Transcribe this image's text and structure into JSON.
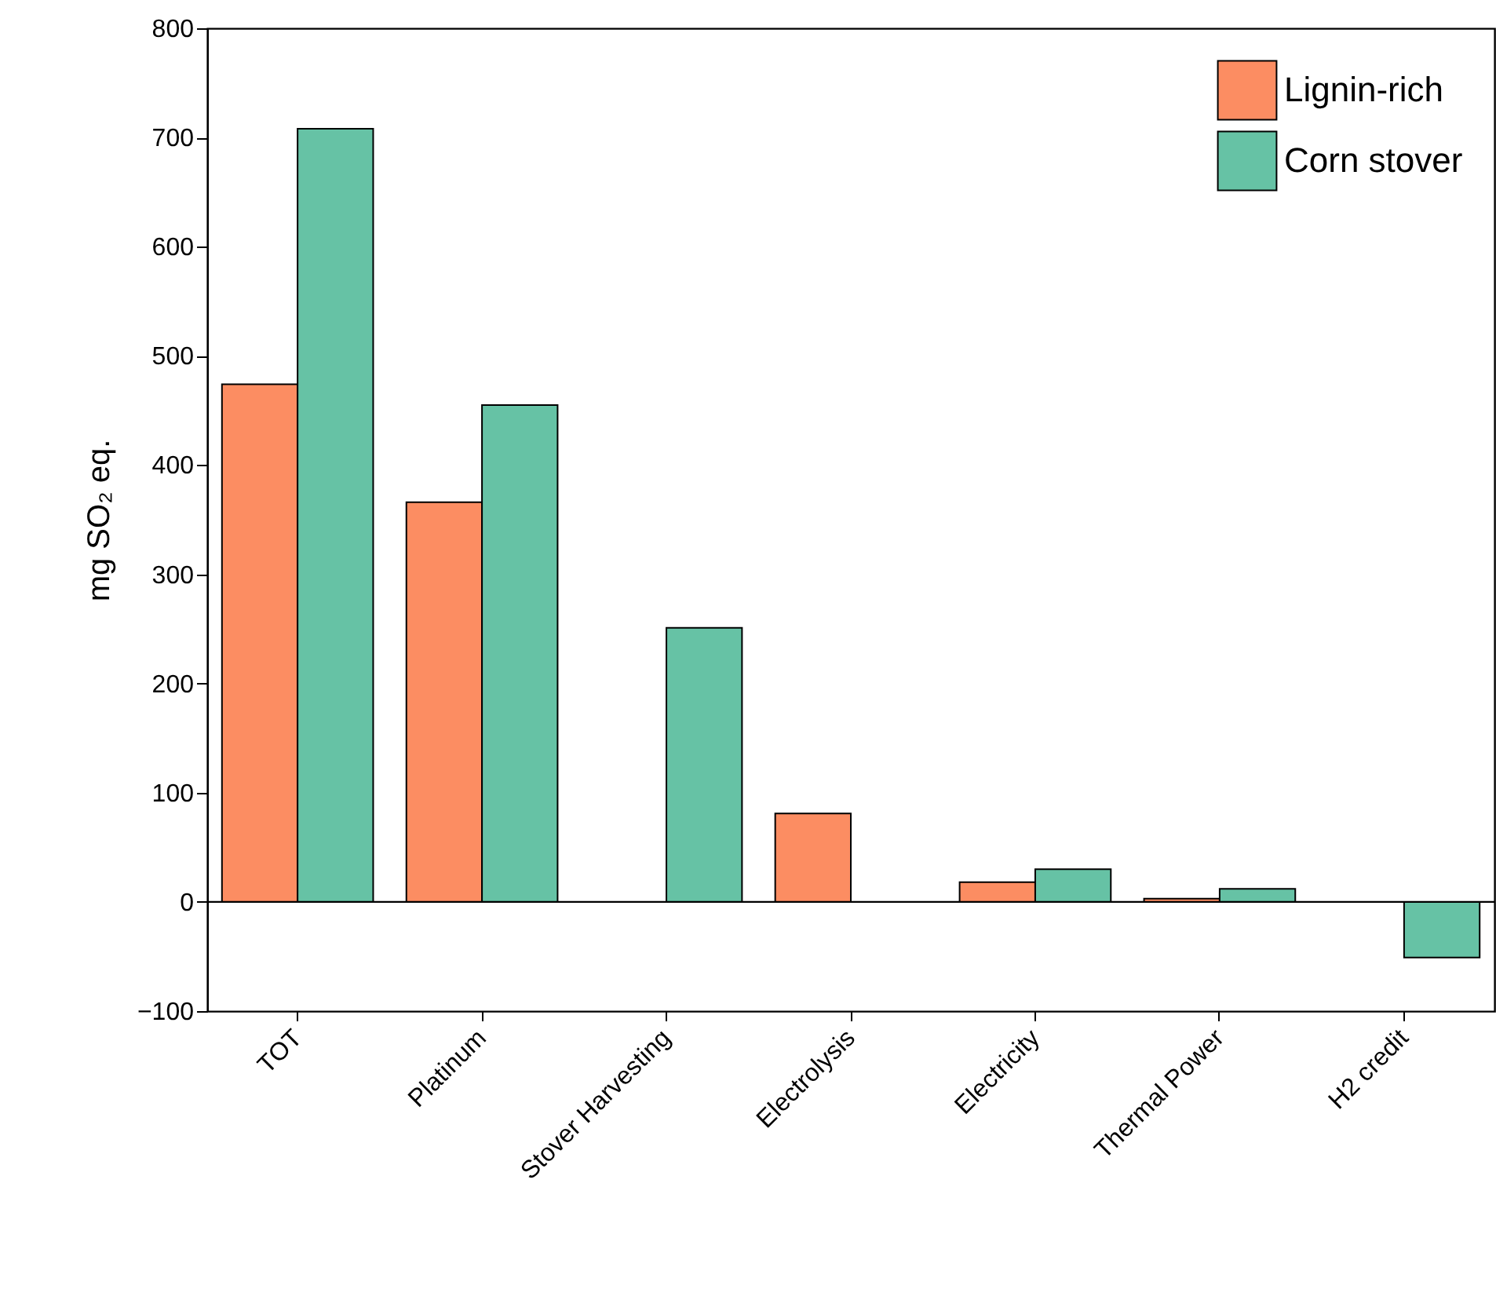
{
  "chart_data": {
    "type": "bar",
    "ylabel": "mg SO₂ eq.",
    "categories": [
      "TOT",
      "Platinum",
      "Stover Harvesting",
      "Electrolysis",
      "Electricity",
      "Thermal Power",
      "H2 credit"
    ],
    "series": [
      {
        "name": "Lignin-rich",
        "color": "#fc8d62",
        "values": [
          474,
          366,
          null,
          81,
          18,
          3,
          null
        ]
      },
      {
        "name": "Corn stover",
        "color": "#66c2a5",
        "values": [
          708,
          455,
          251,
          null,
          30,
          12,
          -51
        ]
      }
    ],
    "ylim": [
      -100,
      800
    ],
    "yticks": [
      -100,
      0,
      100,
      200,
      300,
      400,
      500,
      600,
      700,
      800
    ],
    "ref_lines": [
      {
        "axis": "y",
        "value": 0,
        "color": "#000000"
      }
    ],
    "grid": false,
    "legend": "top right"
  }
}
